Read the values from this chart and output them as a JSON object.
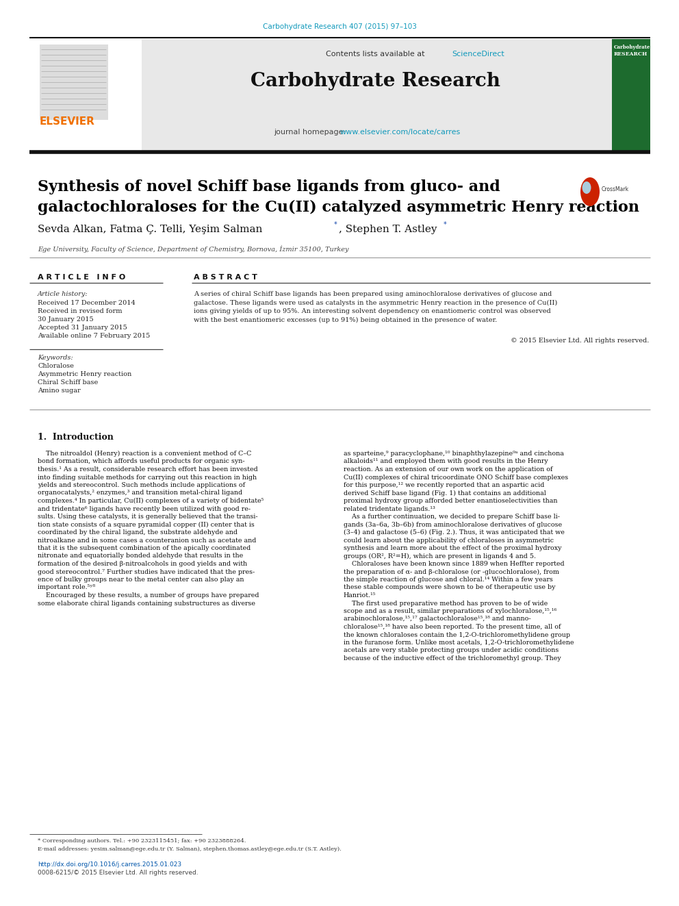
{
  "page_width": 9.92,
  "page_height": 13.23,
  "dpi": 100,
  "bg": "#ffffff",
  "top_ref": "Carbohydrate Research 407 (2015) 97–103",
  "top_ref_color": "#1199bb",
  "header_gray": "#e8e8e8",
  "header_green": "#1d6b2e",
  "black_bar": "#111111",
  "elsevier_orange": "#f07000",
  "contents_text": "Contents lists available at ",
  "sciencedirect": "ScienceDirect",
  "sd_color": "#1199bb",
  "journal_name": "Carbohydrate Research",
  "homepage_prefix": "journal homepage: ",
  "homepage_url": "www.elsevier.com/locate/carres",
  "url_color": "#1199bb",
  "title_line1": "Synthesis of novel Schiff base ligands from gluco- and",
  "title_line2": "galactochloraloses for the Cu(II) catalyzed asymmetric Henry reaction",
  "title_color": "#000000",
  "author_line": "Sevda Alkan, Fatma Ç. Telli, Yeşim Salman",
  "author_star1_after": 498,
  "author_line2": ", Stephen T. Astley",
  "author_star2_after": 655,
  "affil": "Ege University, Faculty of Science, Department of Chemistry, Bornova, İzmir 35100, Turkey",
  "art_info_hdr": "A R T I C L E   I N F O",
  "abstract_hdr": "A B S T R A C T",
  "art_hist_label": "Article history:",
  "rec1": "Received 17 December 2014",
  "rec2": "Received in revised form",
  "rec2b": "30 January 2015",
  "acc": "Accepted 31 January 2015",
  "avail": "Available online 7 February 2015",
  "kw_label": "Keywords:",
  "kw1": "Chloralose",
  "kw2": "Asymmetric Henry reaction",
  "kw3": "Chiral Schiff base",
  "kw4": "Amino sugar",
  "abs_lines": [
    "A series of chiral Schiff base ligands has been prepared using aminochloralose derivatives of glucose and",
    "galactose. These ligands were used as catalysts in the asymmetric Henry reaction in the presence of Cu(II)",
    "ions giving yields of up to 95%. An interesting solvent dependency on enantiomeric control was observed",
    "with the best enantiomeric excesses (up to 91%) being obtained in the presence of water."
  ],
  "copyright": "© 2015 Elsevier Ltd. All rights reserved.",
  "intro_hdr": "1.  Introduction",
  "left_col_lines": [
    "    The nitroaldol (Henry) reaction is a convenient method of C–C",
    "bond formation, which affords useful products for organic syn-",
    "thesis.¹ As a result, considerable research effort has been invested",
    "into finding suitable methods for carrying out this reaction in high",
    "yields and stereocontrol. Such methods include applications of",
    "organocatalysts,² enzymes,³ and transition metal-chiral ligand",
    "complexes.⁴ In particular, Cu(II) complexes of a variety of bidentate⁵",
    "and tridentate⁶ ligands have recently been utilized with good re-",
    "sults. Using these catalysts, it is generally believed that the transi-",
    "tion state consists of a square pyramidal copper (II) center that is",
    "coordinated by the chiral ligand, the substrate aldehyde and",
    "nitroalkane and in some cases a counteranion such as acetate and",
    "that it is the subsequent combination of the apically coordinated",
    "nitronate and equatorially bonded aldehyde that results in the",
    "formation of the desired β-nitroalcohols in good yields and with",
    "good stereocontrol.⁷ Further studies have indicated that the pres-",
    "ence of bulky groups near to the metal center can also play an",
    "important role.⁵ʸ⁸",
    "    Encouraged by these results, a number of groups have prepared",
    "some elaborate chiral ligands containing substructures as diverse"
  ],
  "right_col_lines": [
    "as sparteine,⁹ paracyclophane,¹⁰ binaphthylazepine⁹ᵃ and cinchona",
    "alkaloids¹¹ and employed them with good results in the Henry",
    "reaction. As an extension of our own work on the application of",
    "Cu(II) complexes of chiral tricoordinate ONO Schiff base complexes",
    "for this purpose,¹² we recently reported that an aspartic acid",
    "derived Schiff base ligand (Fig. 1) that contains an additional",
    "proximal hydroxy group afforded better enantioselectivities than",
    "related tridentate ligands.¹³",
    "    As a further continuation, we decided to prepare Schiff base li-",
    "gands (3a–6a, 3b–6b) from aminochloralose derivatives of glucose",
    "(3–4) and galactose (5–6) (Fig. 2.). Thus, it was anticipated that we",
    "could learn about the applicability of chloraloses in asymmetric",
    "synthesis and learn more about the effect of the proximal hydroxy",
    "groups (OR², R²=H), which are present in ligands 4 and 5.",
    "    Chloraloses have been known since 1889 when Heffter reported",
    "the preparation of α- and β-chloralose (or -glucochloralose), from",
    "the simple reaction of glucose and chloral.¹⁴ Within a few years",
    "these stable compounds were shown to be of therapeutic use by",
    "Hanriot.¹⁵",
    "    The first used preparative method has proven to be of wide",
    "scope and as a result, similar preparations of xylochloralose,¹⁵,¹⁶",
    "arabinochloralose,¹⁵,¹⁷ galactochloralose¹⁵,¹⁸ and manno-",
    "chloralose¹⁵,¹⁸ have also been reported. To the present time, all of",
    "the known chloraloses contain the 1,2-O-trichloromethylidene group",
    "in the furanose form. Unlike most acetals, 1,2-O-trichloromethylidene",
    "acetals are very stable protecting groups under acidic conditions",
    "because of the inductive effect of the trichloromethyl group. They"
  ],
  "footnote1": "* Corresponding authors. Tel.: +90 2323115451; fax: +90 2323888264.",
  "footnote2": "E-mail addresses: yesim.salman@ege.edu.tr (Y. Salman), stephen.thomas.astley@ege.edu.tr (S.T. Astley).",
  "doi": "http://dx.doi.org/10.1016/j.carres.2015.01.023",
  "issn": "0008-6215/© 2015 Elsevier Ltd. All rights reserved.",
  "link_color": "#0055aa",
  "dark_gray": "#333333",
  "mid_gray": "#888888",
  "text_black": "#111111"
}
